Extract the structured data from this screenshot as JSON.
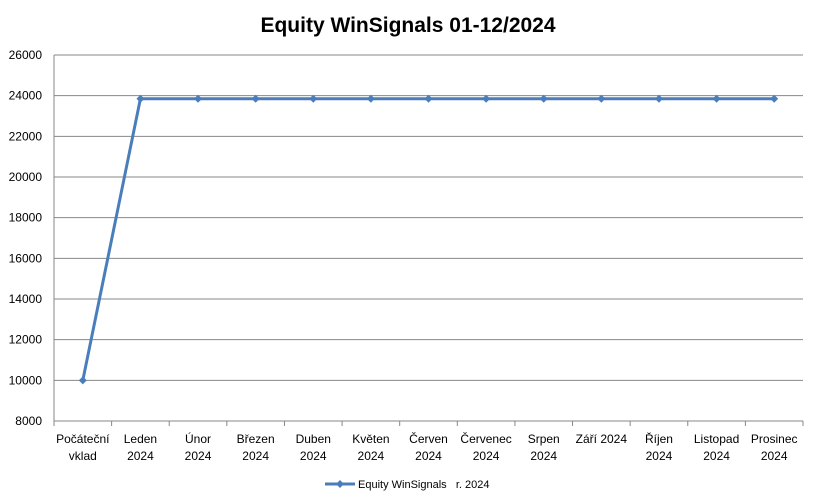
{
  "chart_data": {
    "type": "line",
    "title": "Equity WinSignals 01-12/2024",
    "xlabel": "",
    "ylabel": "",
    "categories": [
      [
        "Počáteční",
        "vklad"
      ],
      [
        "Leden",
        "2024"
      ],
      [
        "Únor",
        "2024"
      ],
      [
        "Březen",
        "2024"
      ],
      [
        "Duben",
        "2024"
      ],
      [
        "Květen",
        "2024"
      ],
      [
        "Červen",
        "2024"
      ],
      [
        "Červenec",
        "2024"
      ],
      [
        "Srpen",
        "2024"
      ],
      [
        "Září 2024"
      ],
      [
        "Říjen",
        "2024"
      ],
      [
        "Listopad",
        "2024"
      ],
      [
        "Prosinec",
        "2024"
      ]
    ],
    "series": [
      {
        "name": "Equity WinSignals   r. 2024",
        "values": [
          10000,
          23850,
          23850,
          23850,
          23850,
          23850,
          23850,
          23850,
          23850,
          23850,
          23850,
          23850,
          23850
        ]
      }
    ],
    "ylim": [
      8000,
      26000
    ],
    "yticks": [
      8000,
      10000,
      12000,
      14000,
      16000,
      18000,
      20000,
      22000,
      24000,
      26000
    ],
    "grid": true,
    "legend": "bottom-center",
    "colors": {
      "line": "#4a7ebb",
      "grid": "#878787",
      "axis": "#878787"
    }
  }
}
